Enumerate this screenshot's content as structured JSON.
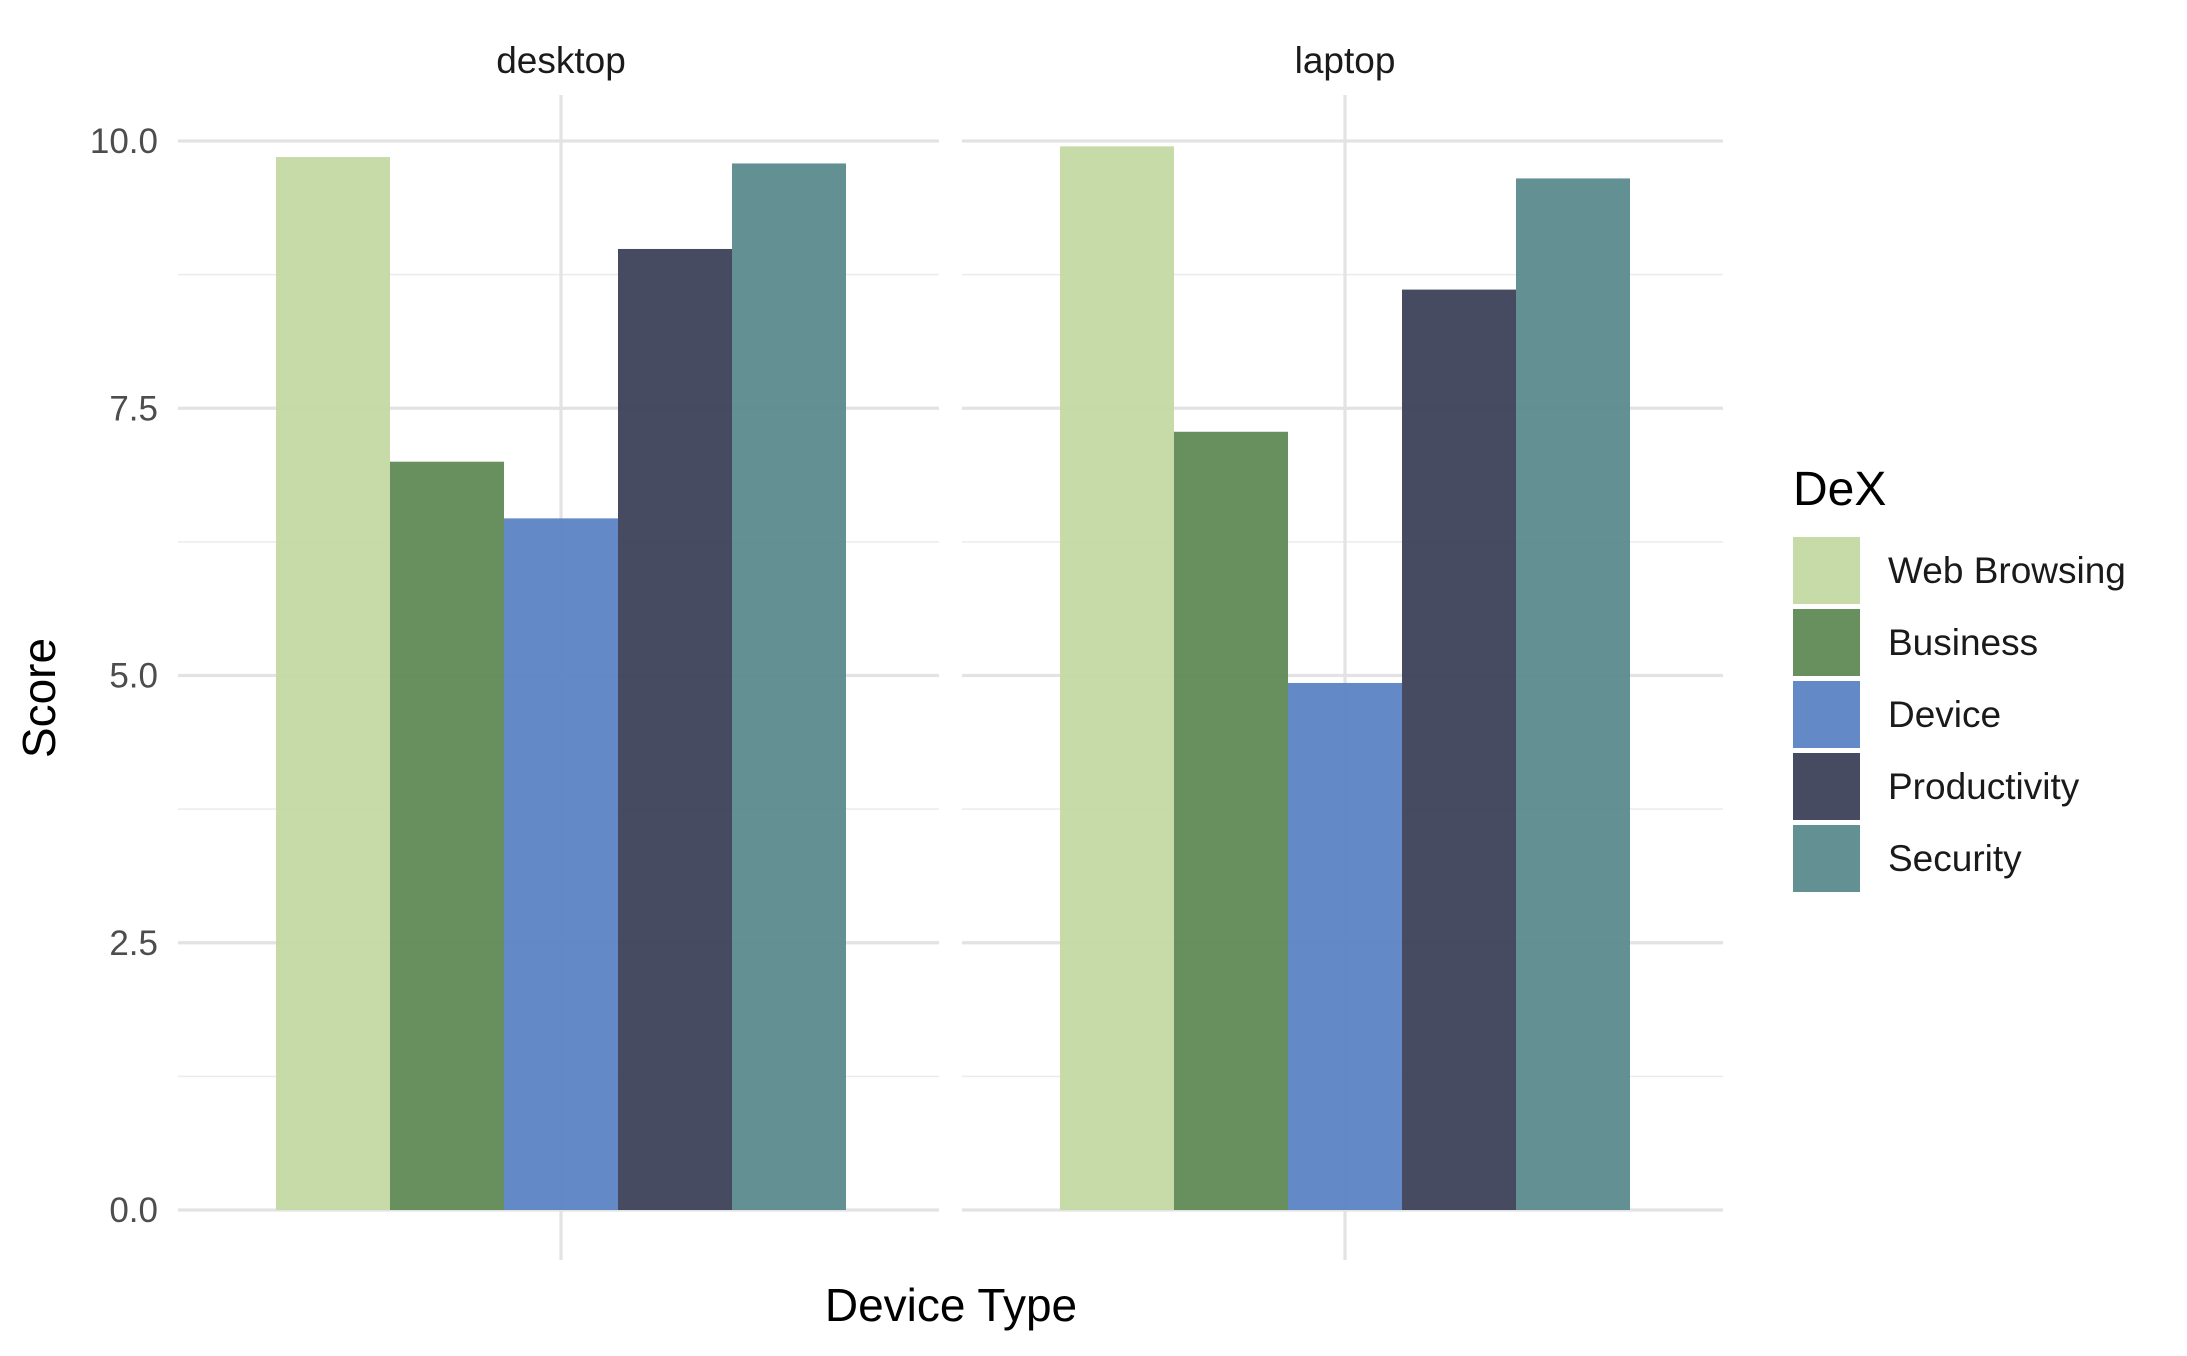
{
  "chart_data": {
    "type": "bar",
    "facets": [
      "desktop",
      "laptop"
    ],
    "xlabel": "Device Type",
    "ylabel": "Score",
    "ylim": [
      0,
      10.5
    ],
    "yticks": [
      0.0,
      2.5,
      5.0,
      7.5,
      10.0
    ],
    "ytick_labels": [
      "0.0",
      "2.5",
      "5.0",
      "7.5",
      "10.0"
    ],
    "grid": true,
    "legend": {
      "title": "DeX",
      "position": "right"
    },
    "series": [
      {
        "name": "Web Browsing",
        "color": "#c4d9a4",
        "values": [
          9.85,
          9.95
        ]
      },
      {
        "name": "Business",
        "color": "#5f8a55",
        "values": [
          7.0,
          7.28
        ]
      },
      {
        "name": "Device",
        "color": "#5b84c4",
        "values": [
          6.47,
          4.93
        ]
      },
      {
        "name": "Productivity",
        "color": "#3c4159",
        "values": [
          8.99,
          8.61
        ]
      },
      {
        "name": "Security",
        "color": "#5b8a8c",
        "values": [
          9.79,
          9.65
        ]
      }
    ]
  }
}
